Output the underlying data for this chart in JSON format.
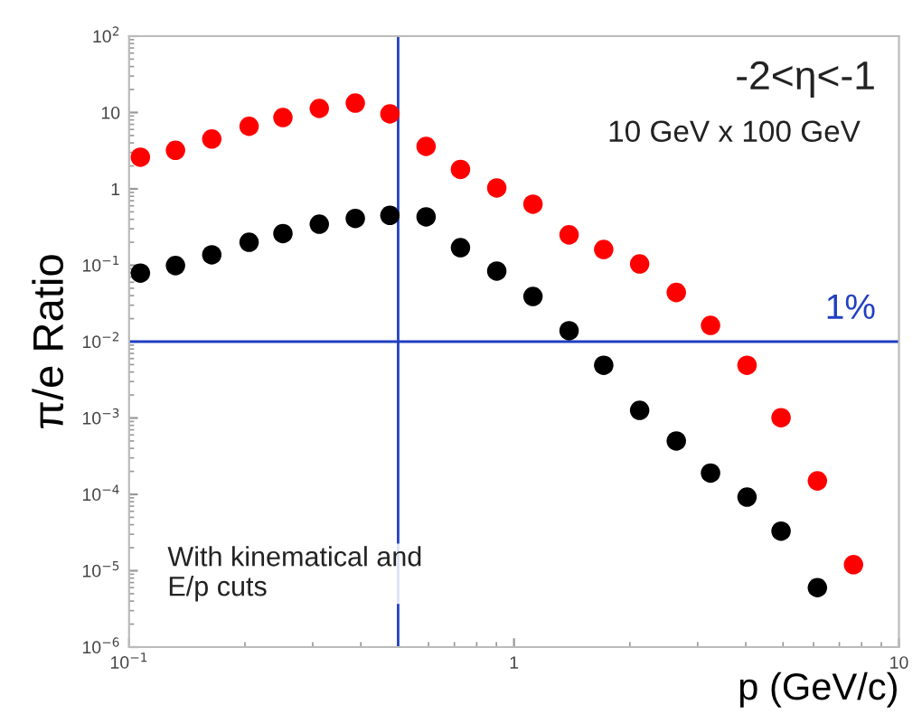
{
  "chart_data": {
    "type": "scatter",
    "xlabel": "p (GeV/c)",
    "ylabel": "π/e Ratio",
    "log": "xy",
    "marker": "circle",
    "grid": false,
    "legend": false,
    "xlim": [
      0.1,
      10
    ],
    "ylim": [
      1e-06,
      100
    ],
    "xticks": [
      {
        "value": 0.1,
        "label": "10$^{−1}$"
      },
      1,
      10
    ],
    "yticks": [
      {
        "value": 1e-06,
        "label": "10$^{−6}$"
      },
      {
        "value": 1e-05,
        "label": "10$^{−5}$"
      },
      {
        "value": 0.0001,
        "label": "10$^{−4}$"
      },
      {
        "value": 0.001,
        "label": "10$^{−3}$"
      },
      {
        "value": 0.01,
        "label": "10$^{−2}$"
      },
      {
        "value": 0.1,
        "label": "10$^{−1}$"
      },
      1,
      10,
      {
        "value": 100,
        "label": "10$^{2}$"
      }
    ],
    "series": [
      {
        "color": "#ff0000",
        "x": [
          0.107,
          0.132,
          0.164,
          0.205,
          0.251,
          0.312,
          0.387,
          0.476,
          0.591,
          0.726,
          0.902,
          1.12,
          1.39,
          1.71,
          2.12,
          2.64,
          3.24,
          4.03,
          4.94,
          6.14,
          7.62
        ],
        "values": [
          2.6,
          3.2,
          4.5,
          6.6,
          8.6,
          11.3,
          13.3,
          9.6,
          3.6,
          1.8,
          1.03,
          0.63,
          0.25,
          0.161,
          0.104,
          0.044,
          0.0163,
          0.0049,
          0.00101,
          0.00015,
          1.2e-05
        ]
      },
      {
        "color": "#000000",
        "x": [
          0.107,
          0.132,
          0.164,
          0.205,
          0.251,
          0.312,
          0.387,
          0.476,
          0.591,
          0.726,
          0.902,
          1.12,
          1.39,
          1.71,
          2.12,
          2.64,
          3.24,
          4.03,
          4.94,
          6.14
        ],
        "values": [
          0.079,
          0.099,
          0.137,
          0.2,
          0.26,
          0.345,
          0.41,
          0.45,
          0.43,
          0.17,
          0.084,
          0.039,
          0.0139,
          0.0049,
          0.00126,
          0.0005,
          0.00019,
          9.2e-05,
          3.3e-05,
          6e-06
        ]
      }
    ],
    "ref_lines": [
      {
        "axis": "x",
        "value": 0.5,
        "color": "#2040c0"
      },
      {
        "axis": "y",
        "value": 0.01,
        "label": "1%",
        "color": "#2040c0"
      }
    ],
    "annotations": [
      "-2<η<-1",
      "10 GeV x 100 GeV",
      "With kinematical and\nE/p cuts"
    ]
  }
}
